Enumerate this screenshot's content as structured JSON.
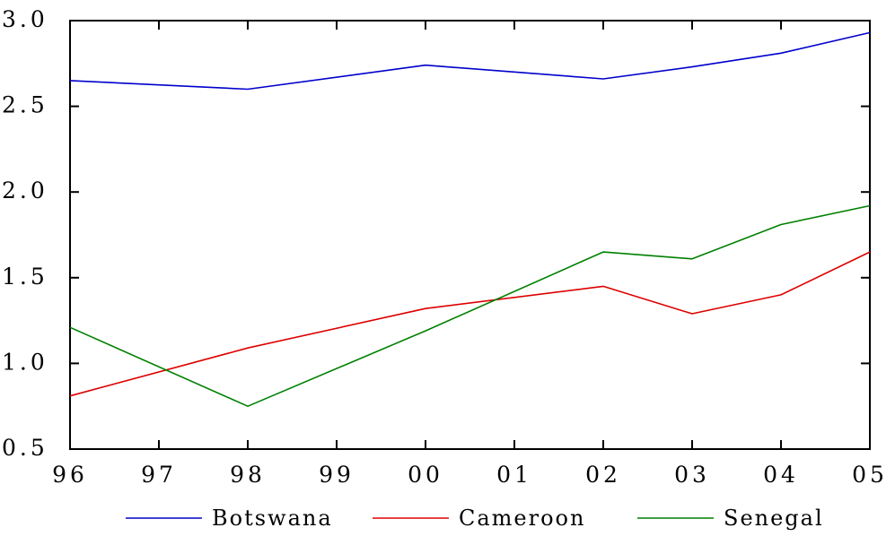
{
  "chart_data": {
    "type": "line",
    "x": [
      "96",
      "97",
      "98",
      "99",
      "00",
      "01",
      "02",
      "03",
      "04",
      "05"
    ],
    "yticks": [
      "0.5",
      "1.0",
      "1.5",
      "2.0",
      "2.5",
      "3.0"
    ],
    "ylim": [
      0.5,
      3.0
    ],
    "grid": false,
    "legend_position": "bottom",
    "series": [
      {
        "name": "Botswana",
        "color": "#0000cc",
        "values": [
          2.65,
          null,
          2.6,
          null,
          2.74,
          null,
          2.66,
          2.73,
          2.81,
          2.93
        ]
      },
      {
        "name": "Cameroon",
        "color": "#dd0000",
        "values": [
          0.81,
          null,
          1.09,
          null,
          1.32,
          null,
          1.45,
          1.29,
          1.4,
          1.65
        ]
      },
      {
        "name": "Senegal",
        "color": "#008000",
        "values": [
          1.21,
          null,
          0.75,
          null,
          1.19,
          null,
          1.65,
          1.61,
          1.81,
          1.92
        ]
      }
    ]
  }
}
